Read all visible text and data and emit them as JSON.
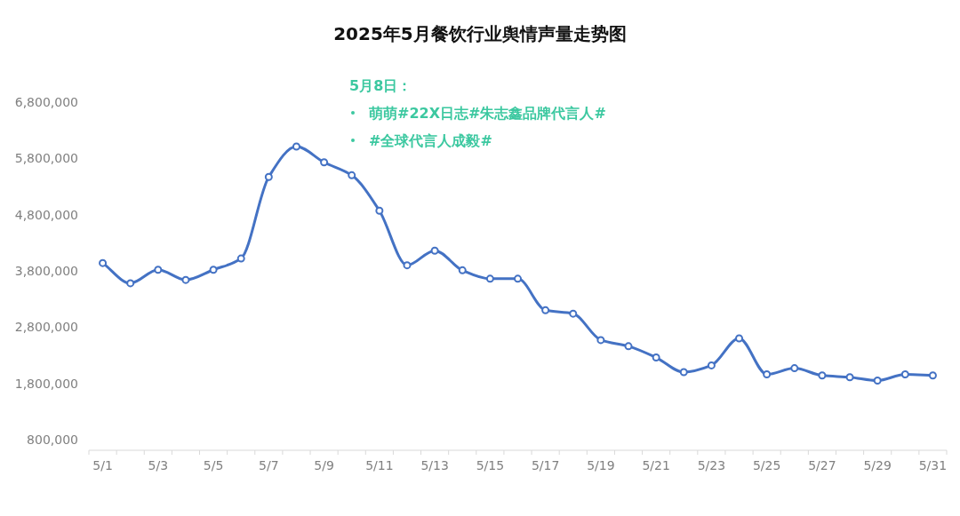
{
  "chart_data": {
    "type": "line",
    "title": "2025年5月餐饮行业舆情声量走势图",
    "categories": [
      "5/1",
      null,
      "5/3",
      null,
      "5/5",
      null,
      "5/7",
      null,
      "5/9",
      null,
      "5/11",
      null,
      "5/13",
      null,
      "5/15",
      null,
      "5/17",
      null,
      "5/19",
      null,
      "5/21",
      null,
      "5/23",
      null,
      "5/25",
      null,
      "5/27",
      null,
      "5/29",
      null,
      "5/31"
    ],
    "series": [
      {
        "color": "#4472c4",
        "values": [
          3940000,
          3580000,
          3820000,
          3640000,
          3820000,
          4020000,
          5470000,
          6010000,
          5730000,
          5500000,
          4870000,
          3900000,
          4160000,
          3810000,
          3660000,
          3660000,
          3100000,
          3040000,
          2570000,
          2460000,
          2260000,
          2000000,
          2120000,
          2600000,
          1960000,
          2070000,
          1940000,
          1910000,
          1850000,
          1960000,
          1940000
        ]
      }
    ],
    "ylim": [
      800000,
      6800000
    ],
    "yticks": [
      {
        "value": 800000,
        "label": "800,000"
      },
      {
        "value": 1800000,
        "label": "1,800,000"
      },
      {
        "value": 2800000,
        "label": "2,800,000"
      },
      {
        "value": 3800000,
        "label": "3,800,000"
      },
      {
        "value": 4800000,
        "label": "4,800,000"
      },
      {
        "value": 5800000,
        "label": "5,800,000"
      },
      {
        "value": 6800000,
        "label": "6,800,000"
      }
    ],
    "annotations": [
      "5月8日：",
      "萌萌#22X日志#朱志鑫品牌代言人#",
      "#全球代言人成毅#"
    ],
    "marker": "circle",
    "grid": false
  }
}
